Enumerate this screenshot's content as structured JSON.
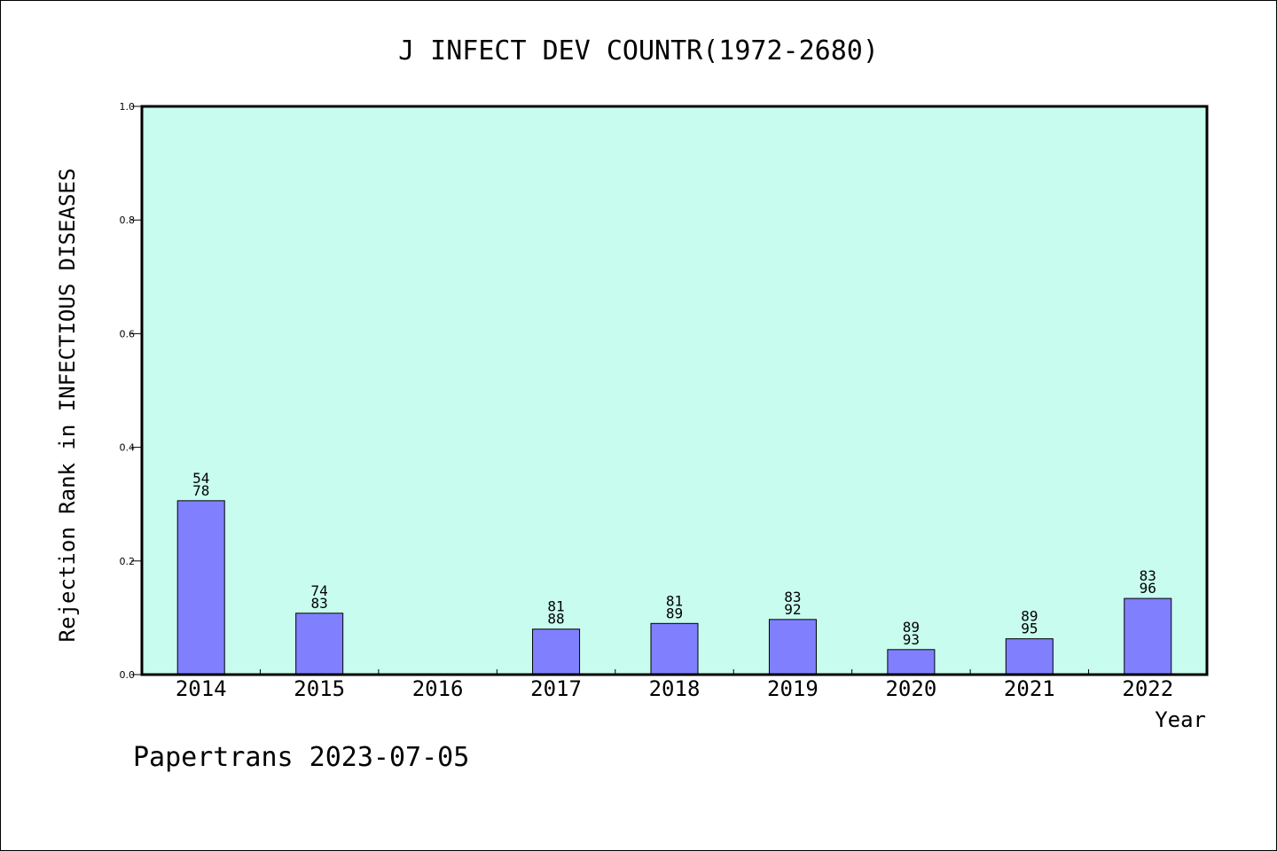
{
  "chart_data": {
    "type": "bar",
    "title": "J INFECT DEV COUNTR(1972-2680)",
    "xlabel": "Year",
    "ylabel": "Rejection Rank in INFECTIOUS DISEASES",
    "ylim": [
      0,
      1.0
    ],
    "yticks": [
      "0.0",
      "0.2",
      "0.4",
      "0.6",
      "0.8",
      "1.0"
    ],
    "categories": [
      "2014",
      "2015",
      "2016",
      "2017",
      "2018",
      "2019",
      "2020",
      "2021",
      "2022"
    ],
    "values": [
      0.306,
      0.108,
      null,
      0.08,
      0.09,
      0.097,
      0.044,
      0.063,
      0.134
    ],
    "bar_labels": [
      [
        "54",
        "78"
      ],
      [
        "74",
        "83"
      ],
      null,
      [
        "81",
        "88"
      ],
      [
        "81",
        "89"
      ],
      [
        "83",
        "92"
      ],
      [
        "89",
        "93"
      ],
      [
        "89",
        "95"
      ],
      [
        "83",
        "96"
      ]
    ],
    "colors": {
      "plot_background": "#c8fcee",
      "bar_fill": "#8080ff",
      "bar_stroke": "#000000"
    },
    "grid": false,
    "legend": "none"
  },
  "footer": "Papertrans 2023-07-05"
}
